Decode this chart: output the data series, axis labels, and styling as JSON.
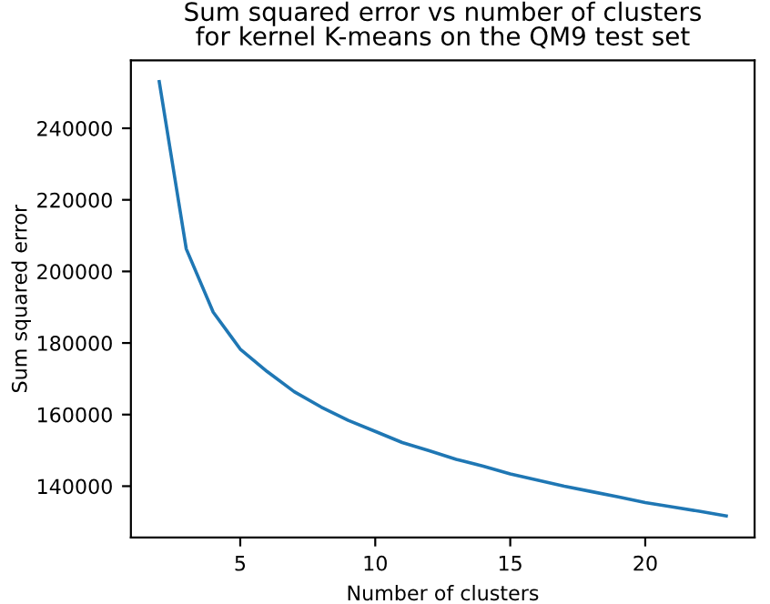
{
  "chart_data": {
    "type": "line",
    "title": "Sum squared error vs number of clusters\nfor kernel K-means on the QM9 test set",
    "xlabel": "Number of clusters",
    "ylabel": "Sum squared error",
    "x": [
      2,
      3,
      4,
      5,
      6,
      7,
      8,
      9,
      10,
      11,
      12,
      13,
      14,
      15,
      16,
      17,
      18,
      19,
      20,
      21,
      22,
      23
    ],
    "series": [
      {
        "color": "#1f77b4",
        "values": [
          253000,
          206300,
          188600,
          178300,
          172000,
          166400,
          162100,
          158400,
          155300,
          152200,
          149900,
          147500,
          145600,
          143400,
          141700,
          140000,
          138500,
          137000,
          135400,
          134200,
          133000,
          131700
        ]
      }
    ],
    "xlim": [
      0.95,
      24.05
    ],
    "ylim": [
      125640,
      258960
    ],
    "xticks": [
      5,
      10,
      15,
      20
    ],
    "yticks": [
      140000,
      160000,
      180000,
      200000,
      220000,
      240000
    ],
    "grid": false,
    "legend": false
  }
}
